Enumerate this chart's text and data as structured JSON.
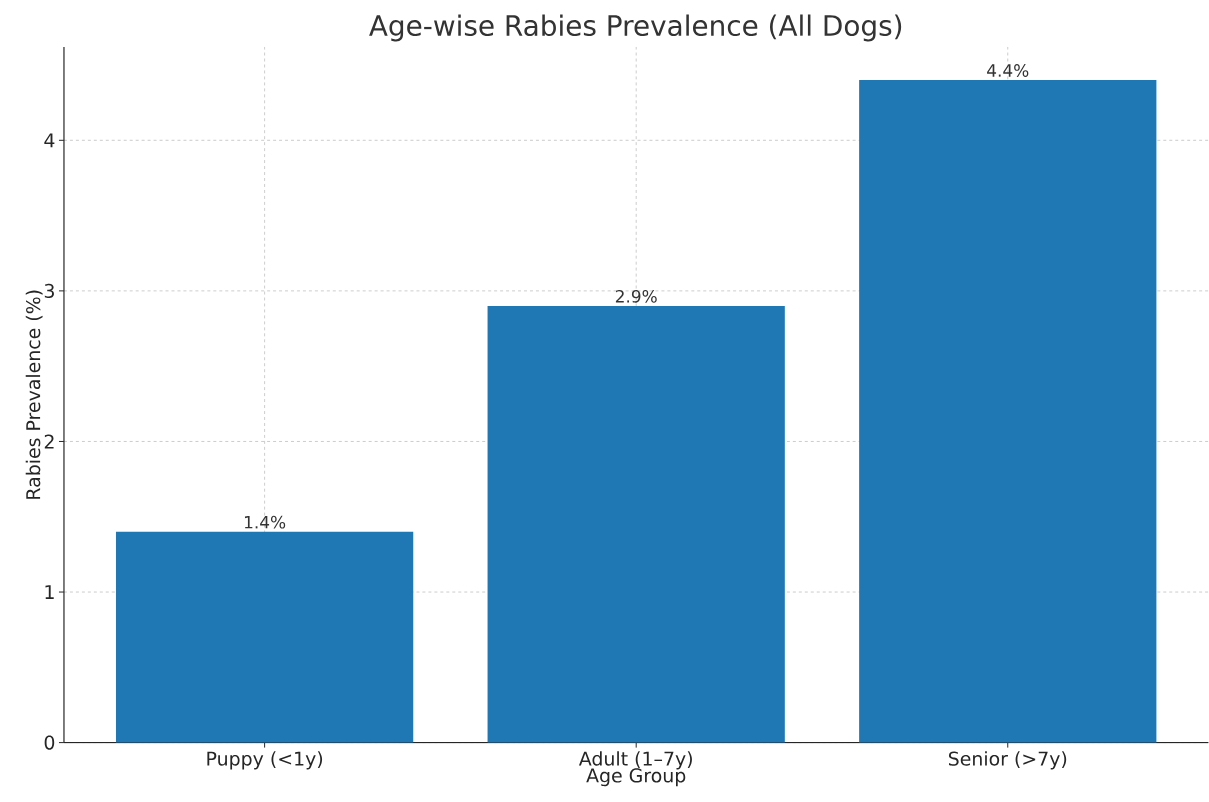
{
  "chart_data": {
    "type": "bar",
    "title": "Age-wise Rabies Prevalence (All Dogs)",
    "xlabel": "Age Group",
    "ylabel": "Rabies Prevalence (%)",
    "categories": [
      "Puppy (<1y)",
      "Adult (1–7y)",
      "Senior (>7y)"
    ],
    "values": [
      1.4,
      2.9,
      4.4
    ],
    "value_labels": [
      "1.4%",
      "2.9%",
      "4.4%"
    ],
    "color": "#1f77b4",
    "ylim": [
      0,
      4.62
    ],
    "yticks": [
      0,
      1,
      2,
      3,
      4
    ],
    "grid": true
  }
}
